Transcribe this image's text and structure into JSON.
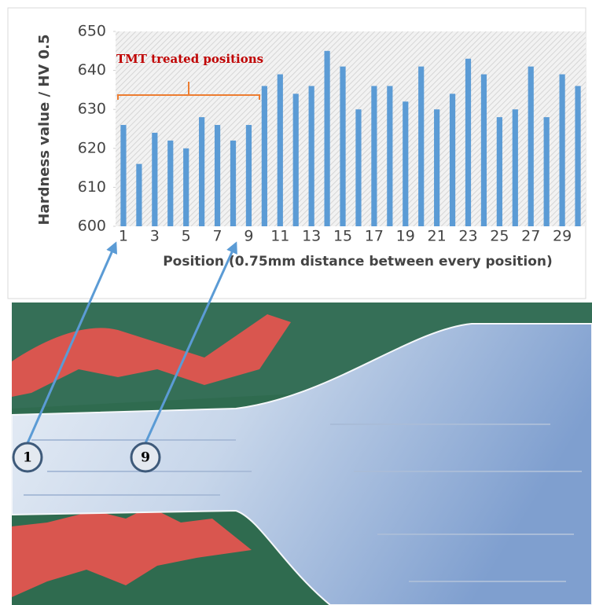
{
  "chart_data": {
    "type": "bar",
    "y_label": "Hardness value / HV 0.5",
    "x_label": "Position (0.75mm distance between every position)",
    "annotation": "TMT treated positions",
    "callouts": [
      "1",
      "9"
    ],
    "categories": [
      "1",
      null,
      "3",
      null,
      "5",
      null,
      "7",
      null,
      "9",
      null,
      "11",
      null,
      "13",
      null,
      "15",
      null,
      "17",
      null,
      "19",
      null,
      "21",
      null,
      "23",
      null,
      "25",
      null,
      "27",
      null,
      "29",
      null
    ],
    "values": [
      626,
      616,
      624,
      622,
      620,
      628,
      626,
      622,
      626,
      636,
      639,
      634,
      636,
      645,
      641,
      630,
      636,
      636,
      632,
      641,
      630,
      634,
      643,
      639,
      628,
      630,
      641,
      628,
      639,
      636
    ],
    "color": "#5b9bd5",
    "ylim": [
      600,
      650
    ],
    "yticks": [
      600,
      610,
      620,
      630,
      640,
      650
    ]
  }
}
